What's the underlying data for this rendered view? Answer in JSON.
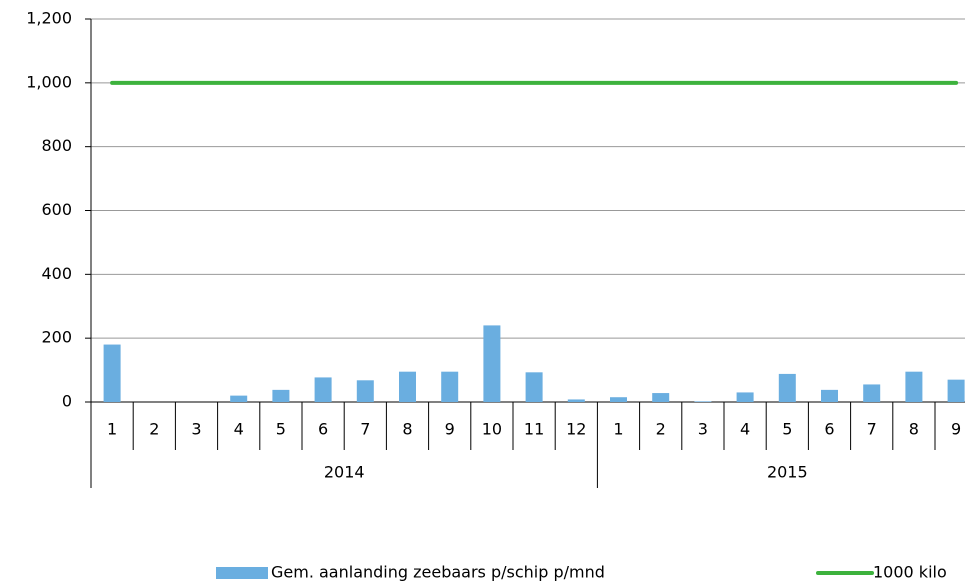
{
  "chart_data": {
    "type": "bar",
    "groups": [
      {
        "label": "2014",
        "categories": [
          "1",
          "2",
          "3",
          "4",
          "5",
          "6",
          "7",
          "8",
          "9",
          "10",
          "11",
          "12"
        ]
      },
      {
        "label": "2015",
        "categories": [
          "1",
          "2",
          "3",
          "4",
          "5",
          "6",
          "7",
          "8",
          "9"
        ]
      }
    ],
    "series": [
      {
        "name": "Gem. aanlanding zeebaars p/schip p/mnd",
        "type": "bar",
        "color": "#6aaee0",
        "values": [
          180,
          0,
          0,
          20,
          38,
          77,
          68,
          95,
          95,
          240,
          93,
          8,
          15,
          28,
          2,
          30,
          88,
          38,
          55,
          95,
          70
        ]
      },
      {
        "name": "1000 kilo",
        "type": "line",
        "color": "#3db23d",
        "values": [
          1000,
          1000,
          1000,
          1000,
          1000,
          1000,
          1000,
          1000,
          1000,
          1000,
          1000,
          1000,
          1000,
          1000,
          1000,
          1000,
          1000,
          1000,
          1000,
          1000,
          1000
        ]
      }
    ],
    "ylim": [
      0,
      1200
    ],
    "yticks": [
      0,
      200,
      400,
      600,
      800,
      {
        "value": 1000,
        "label": "1,000"
      },
      {
        "value": 1200,
        "label": "1,200"
      }
    ],
    "grid": true,
    "legend": "bottom"
  }
}
